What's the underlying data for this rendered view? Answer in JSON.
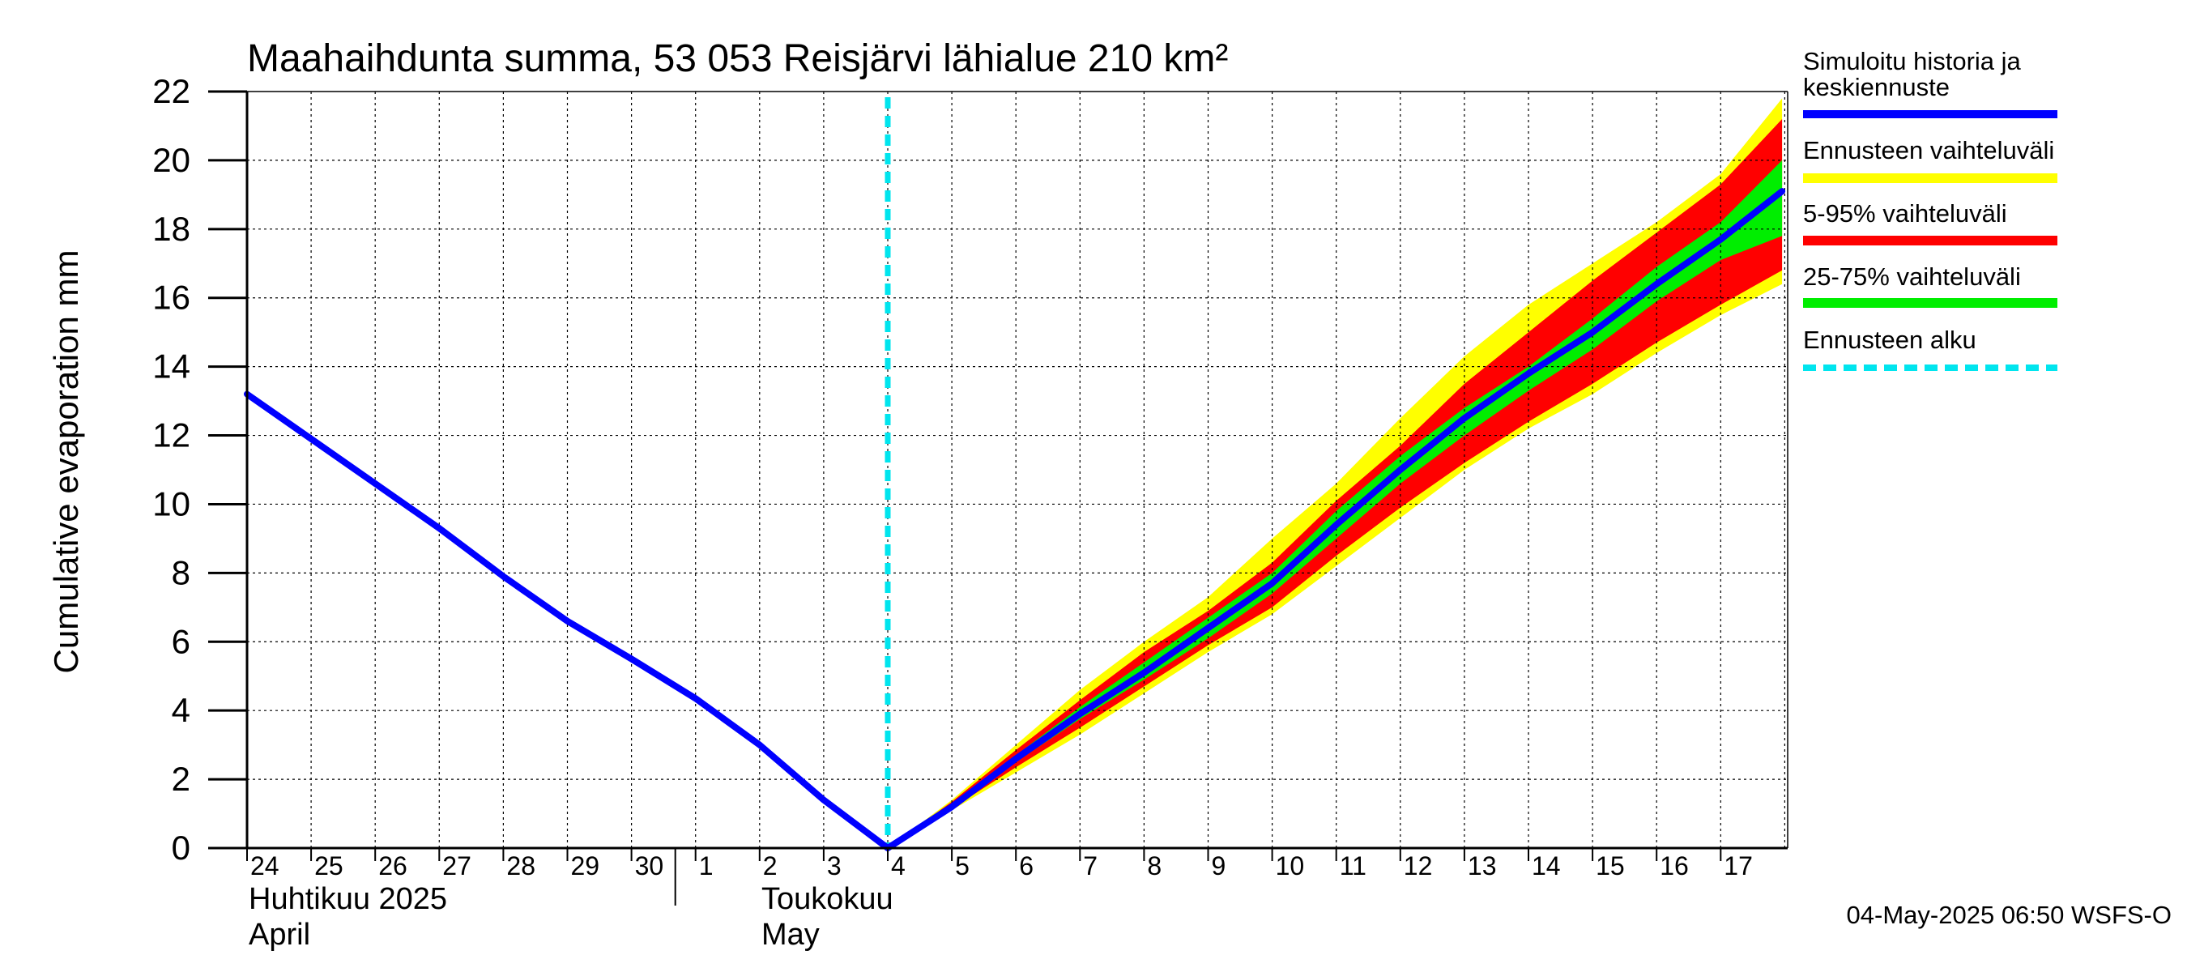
{
  "chart_data": {
    "type": "area",
    "title": "Maahaihdunta summa, 53 053 Reisjärvi lähialue 210 km²",
    "ylabel": "Cumulative evaporation   mm",
    "ylim": [
      0,
      22
    ],
    "y_ticks": [
      "0",
      "2",
      "4",
      "6",
      "8",
      "10",
      "12",
      "14",
      "16",
      "18",
      "20",
      "22"
    ],
    "x_range_days": [
      "2025-04-24",
      "2025-05-17"
    ],
    "x_tick_labels": [
      "24",
      "25",
      "26",
      "27",
      "28",
      "29",
      "30",
      "1",
      "2",
      "3",
      "4",
      "5",
      "6",
      "7",
      "8",
      "9",
      "10",
      "11",
      "12",
      "13",
      "14",
      "15",
      "16",
      "17"
    ],
    "month_labels": [
      {
        "line1": "Huhtikuu  2025",
        "line2": "April"
      },
      {
        "line1": "Toukokuu",
        "line2": "May"
      }
    ],
    "forecast_start": "2025-05-04",
    "grid": true,
    "legend_position": "right",
    "legend": [
      {
        "label": "Simuloitu historia ja keskiennuste",
        "color": "#0000ff",
        "style": "solid"
      },
      {
        "label": "Ennusteen vaihteluväli",
        "color": "#ffff00",
        "style": "solid"
      },
      {
        "label": "5-95% vaihteluväli",
        "color": "#ff0000",
        "style": "solid"
      },
      {
        "label": "25-75% vaihteluväli",
        "color": "#00ee00",
        "style": "solid"
      },
      {
        "label": "Ennusteen alku",
        "color": "#00e5ee",
        "style": "dashed"
      }
    ],
    "series": [
      {
        "name": "Simuloitu historia ja keskiennuste",
        "color": "#0000ff",
        "points": [
          [
            "2025-04-24",
            13.2
          ],
          [
            "2025-04-25",
            11.9
          ],
          [
            "2025-04-26",
            10.6
          ],
          [
            "2025-04-27",
            9.3
          ],
          [
            "2025-04-28",
            7.9
          ],
          [
            "2025-04-29",
            6.6
          ],
          [
            "2025-04-30",
            5.5
          ],
          [
            "2025-05-01",
            4.35
          ],
          [
            "2025-05-02",
            3.0
          ],
          [
            "2025-05-03",
            1.4
          ],
          [
            "2025-05-04",
            0.0
          ],
          [
            "2025-05-05",
            1.2
          ],
          [
            "2025-05-06",
            2.6
          ],
          [
            "2025-05-07",
            3.9
          ],
          [
            "2025-05-08",
            5.1
          ],
          [
            "2025-05-09",
            6.4
          ],
          [
            "2025-05-10",
            7.7
          ],
          [
            "2025-05-11",
            9.4
          ],
          [
            "2025-05-12",
            11.0
          ],
          [
            "2025-05-13",
            12.5
          ],
          [
            "2025-05-14",
            13.8
          ],
          [
            "2025-05-15",
            15.0
          ],
          [
            "2025-05-16",
            16.4
          ],
          [
            "2025-05-17",
            17.7
          ],
          [
            "2025-05-17T23:00",
            19.1
          ]
        ]
      }
    ],
    "bands": [
      {
        "name": "Ennusteen vaihteluväli",
        "color": "#ffff00",
        "x": [
          "2025-05-04",
          "2025-05-05",
          "2025-05-06",
          "2025-05-07",
          "2025-05-08",
          "2025-05-09",
          "2025-05-10",
          "2025-05-11",
          "2025-05-12",
          "2025-05-13",
          "2025-05-14",
          "2025-05-15",
          "2025-05-16",
          "2025-05-17",
          "2025-05-17T23:00"
        ],
        "upper": [
          0.0,
          1.4,
          3.0,
          4.6,
          6.0,
          7.3,
          9.0,
          10.6,
          12.5,
          14.3,
          15.8,
          17.0,
          18.2,
          19.6,
          21.8
        ],
        "lower": [
          0.0,
          1.1,
          2.2,
          3.3,
          4.5,
          5.7,
          6.8,
          8.2,
          9.6,
          11.0,
          12.2,
          13.2,
          14.4,
          15.5,
          16.4
        ]
      },
      {
        "name": "5-95% vaihteluväli",
        "color": "#ff0000",
        "x": [
          "2025-05-04",
          "2025-05-05",
          "2025-05-06",
          "2025-05-07",
          "2025-05-08",
          "2025-05-09",
          "2025-05-10",
          "2025-05-11",
          "2025-05-12",
          "2025-05-13",
          "2025-05-14",
          "2025-05-15",
          "2025-05-16",
          "2025-05-17",
          "2025-05-17T23:00"
        ],
        "upper": [
          0.0,
          1.35,
          2.85,
          4.3,
          5.7,
          6.9,
          8.3,
          10.1,
          11.7,
          13.5,
          15.0,
          16.5,
          17.9,
          19.3,
          21.2
        ],
        "lower": [
          0.0,
          1.15,
          2.35,
          3.5,
          4.7,
          5.9,
          7.0,
          8.5,
          9.9,
          11.2,
          12.4,
          13.5,
          14.7,
          15.8,
          16.8
        ]
      },
      {
        "name": "25-75% vaihteluväli",
        "color": "#00ee00",
        "x": [
          "2025-05-04",
          "2025-05-05",
          "2025-05-06",
          "2025-05-07",
          "2025-05-08",
          "2025-05-09",
          "2025-05-10",
          "2025-05-11",
          "2025-05-12",
          "2025-05-13",
          "2025-05-14",
          "2025-05-15",
          "2025-05-16",
          "2025-05-17",
          "2025-05-17T23:00"
        ],
        "upper": [
          0.0,
          1.25,
          2.7,
          4.1,
          5.4,
          6.7,
          8.0,
          9.8,
          11.4,
          12.8,
          14.0,
          15.4,
          16.9,
          18.2,
          20.0
        ],
        "lower": [
          0.0,
          1.2,
          2.5,
          3.75,
          4.9,
          6.1,
          7.4,
          9.0,
          10.6,
          12.0,
          13.3,
          14.5,
          15.9,
          17.1,
          17.8
        ]
      }
    ]
  },
  "footer": {
    "timestamp": "04-May-2025 06:50 WSFS-O"
  }
}
